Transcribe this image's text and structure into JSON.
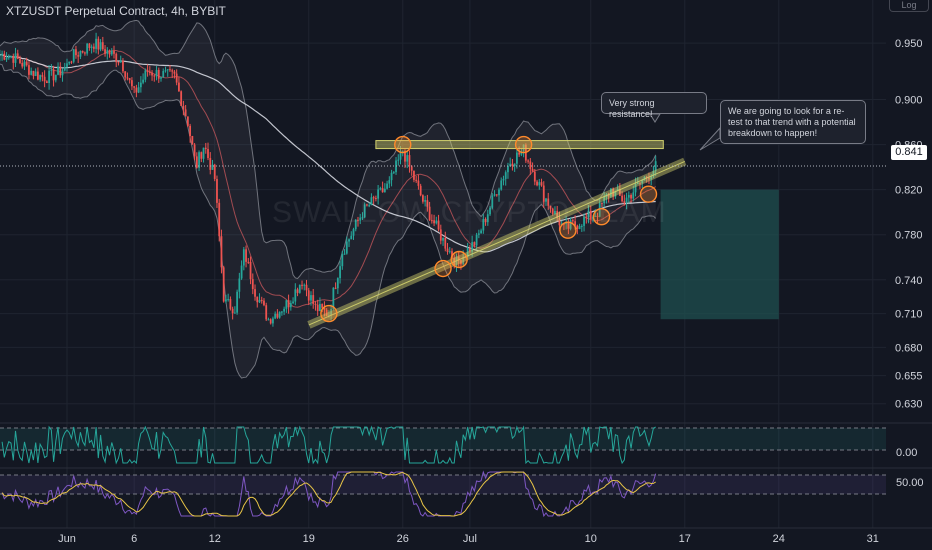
{
  "title": "XTZUSDT Perpetual Contract, 4h, BYBIT",
  "watermark": "SWALLOW CRYPTO TEAM",
  "last_price_label": "0.841",
  "corner_button": "Log",
  "colors": {
    "background": "#131722",
    "up": "#26a69a",
    "down": "#ef5350",
    "band": "#9598a1",
    "resistance": "#d4d36e",
    "marker": "#ff8a2b",
    "position_box": "#1f4f4f",
    "rsi": "#26a69a",
    "stoch": "#7e57c2",
    "signal": "#e8c547"
  },
  "callouts": {
    "resistance": "Very strong resistance!",
    "retest": "We are going to look for a re-test to that trend with a potential breakdown to happen!"
  },
  "chart_data": {
    "type": "candlestick",
    "title": "XTZUSDT Perpetual Contract, 4h, BYBIT",
    "x_ticks": [
      "Jun",
      "6",
      "12",
      "19",
      "26",
      "Jul",
      "10",
      "17",
      "24",
      "31"
    ],
    "y_ticks": [
      0.95,
      0.9,
      0.86,
      0.82,
      0.78,
      0.74,
      0.71,
      0.68,
      0.655,
      0.63
    ],
    "ylim": [
      0.62,
      0.975
    ],
    "last_price": 0.841,
    "price_path": [
      [
        0,
        0.935
      ],
      [
        2,
        0.95
      ],
      [
        4,
        0.935
      ],
      [
        5,
        0.905
      ],
      [
        6,
        0.925
      ],
      [
        8,
        0.92
      ],
      [
        9,
        0.88
      ],
      [
        9.6,
        0.84
      ],
      [
        10.2,
        0.86
      ],
      [
        11,
        0.83
      ],
      [
        11.7,
        0.72
      ],
      [
        12.5,
        0.715
      ],
      [
        13.2,
        0.765
      ],
      [
        14,
        0.73
      ],
      [
        15,
        0.705
      ],
      [
        16.5,
        0.72
      ],
      [
        17.5,
        0.74
      ],
      [
        18.5,
        0.715
      ],
      [
        19.5,
        0.71
      ],
      [
        20.5,
        0.765
      ],
      [
        22,
        0.8
      ],
      [
        24,
        0.825
      ],
      [
        25,
        0.855
      ],
      [
        26.5,
        0.81
      ],
      [
        28,
        0.775
      ],
      [
        29,
        0.755
      ],
      [
        30.5,
        0.775
      ],
      [
        32,
        0.82
      ],
      [
        33,
        0.845
      ],
      [
        34,
        0.855
      ],
      [
        35.5,
        0.815
      ],
      [
        37,
        0.785
      ],
      [
        38,
        0.79
      ],
      [
        39.5,
        0.8
      ],
      [
        40.5,
        0.82
      ],
      [
        41.5,
        0.81
      ],
      [
        43,
        0.83
      ],
      [
        43.9,
        0.841
      ]
    ],
    "resistance_level": 0.86,
    "trendline": {
      "from": [
        19.5,
        0.707
      ],
      "to": [
        46,
        0.845
      ]
    },
    "touch_points": [
      [
        19.5,
        0.71
      ],
      [
        25,
        0.86
      ],
      [
        28,
        0.75
      ],
      [
        29.2,
        0.758
      ],
      [
        34,
        0.86
      ],
      [
        37.3,
        0.784
      ],
      [
        39.8,
        0.796
      ],
      [
        43.3,
        0.816
      ]
    ],
    "position_box": {
      "x_from": 44.2,
      "x_to": 53,
      "y_from": 0.705,
      "y_to": 0.82
    },
    "indicator_1": {
      "type": "rsi",
      "y_ticks": [
        0.0
      ],
      "band": [
        -0.4,
        1.2
      ]
    },
    "indicator_2": {
      "type": "stochastic",
      "y_ticks": [
        50.0
      ],
      "band": [
        20,
        80
      ]
    }
  }
}
